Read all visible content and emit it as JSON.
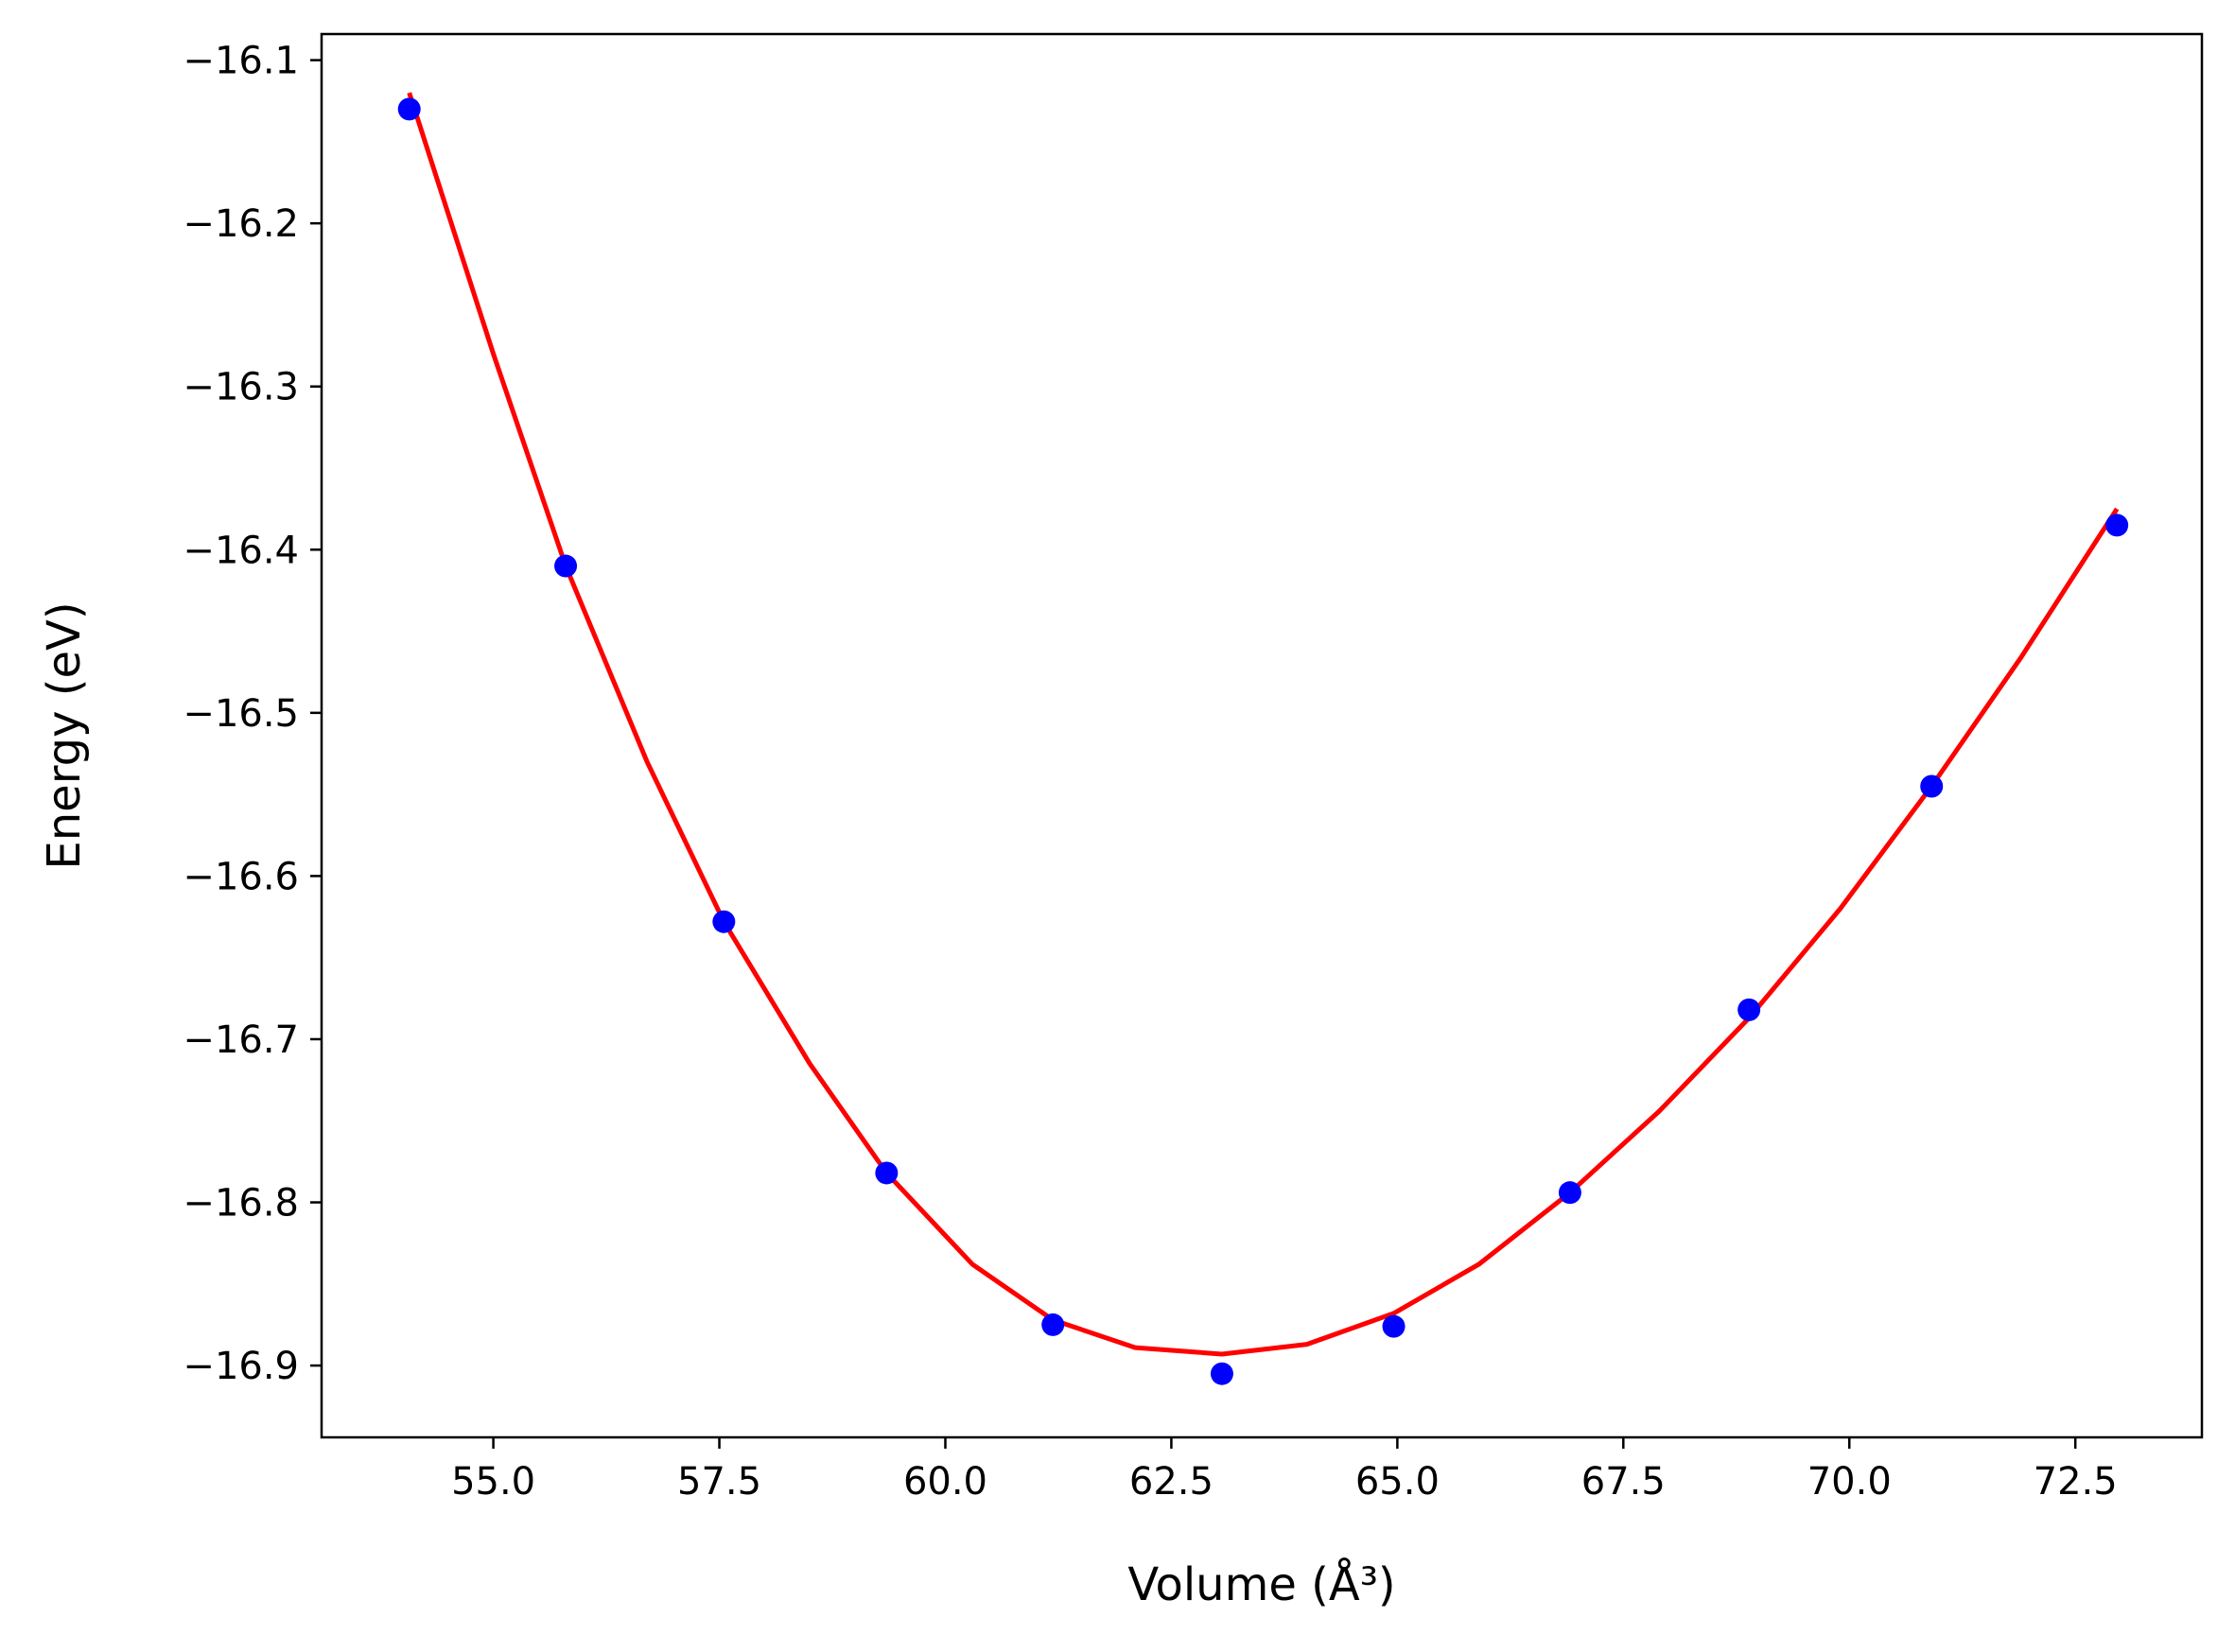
{
  "chart_data": {
    "type": "scatter",
    "xlabel": "Volume (Å³)",
    "ylabel": "Energy (eV)",
    "xlim": [
      53.1,
      73.9
    ],
    "ylim": [
      -16.944,
      -16.084
    ],
    "x_ticks": [
      {
        "value": 55.0,
        "label": "55.0"
      },
      {
        "value": 57.5,
        "label": "57.5"
      },
      {
        "value": 60.0,
        "label": "60.0"
      },
      {
        "value": 62.5,
        "label": "62.5"
      },
      {
        "value": 65.0,
        "label": "65.0"
      },
      {
        "value": 67.5,
        "label": "67.5"
      },
      {
        "value": 70.0,
        "label": "70.0"
      },
      {
        "value": 72.5,
        "label": "72.5"
      }
    ],
    "y_ticks": [
      {
        "value": -16.1,
        "label": "−16.1"
      },
      {
        "value": -16.2,
        "label": "−16.2"
      },
      {
        "value": -16.3,
        "label": "−16.3"
      },
      {
        "value": -16.4,
        "label": "−16.4"
      },
      {
        "value": -16.5,
        "label": "−16.5"
      },
      {
        "value": -16.6,
        "label": "−16.6"
      },
      {
        "value": -16.7,
        "label": "−16.7"
      },
      {
        "value": -16.8,
        "label": "−16.8"
      },
      {
        "value": -16.9,
        "label": "−16.9"
      }
    ],
    "grid": false,
    "series": [
      {
        "type": "scatter",
        "color": "#0000ff",
        "points": [
          {
            "x": 54.07,
            "y": -16.13
          },
          {
            "x": 55.8,
            "y": -16.41
          },
          {
            "x": 57.55,
            "y": -16.628
          },
          {
            "x": 59.35,
            "y": -16.782
          },
          {
            "x": 61.19,
            "y": -16.875
          },
          {
            "x": 63.06,
            "y": -16.905
          },
          {
            "x": 64.96,
            "y": -16.876
          },
          {
            "x": 66.91,
            "y": -16.794
          },
          {
            "x": 68.89,
            "y": -16.682
          },
          {
            "x": 70.91,
            "y": -16.545
          },
          {
            "x": 72.96,
            "y": -16.385
          }
        ]
      },
      {
        "type": "line",
        "color": "#ff0000",
        "points": [
          {
            "x": 54.07,
            "y": -16.12
          },
          {
            "x": 55.0,
            "y": -16.28
          },
          {
            "x": 55.8,
            "y": -16.41
          },
          {
            "x": 56.7,
            "y": -16.53
          },
          {
            "x": 57.55,
            "y": -16.628
          },
          {
            "x": 58.5,
            "y": -16.715
          },
          {
            "x": 59.35,
            "y": -16.782
          },
          {
            "x": 60.3,
            "y": -16.838
          },
          {
            "x": 61.19,
            "y": -16.872
          },
          {
            "x": 62.1,
            "y": -16.889
          },
          {
            "x": 63.06,
            "y": -16.893
          },
          {
            "x": 64.0,
            "y": -16.887
          },
          {
            "x": 64.96,
            "y": -16.868
          },
          {
            "x": 65.9,
            "y": -16.838
          },
          {
            "x": 66.91,
            "y": -16.794
          },
          {
            "x": 67.9,
            "y": -16.744
          },
          {
            "x": 68.89,
            "y": -16.687
          },
          {
            "x": 69.9,
            "y": -16.62
          },
          {
            "x": 70.91,
            "y": -16.545
          },
          {
            "x": 71.9,
            "y": -16.466
          },
          {
            "x": 72.96,
            "y": -16.375
          }
        ]
      }
    ]
  }
}
